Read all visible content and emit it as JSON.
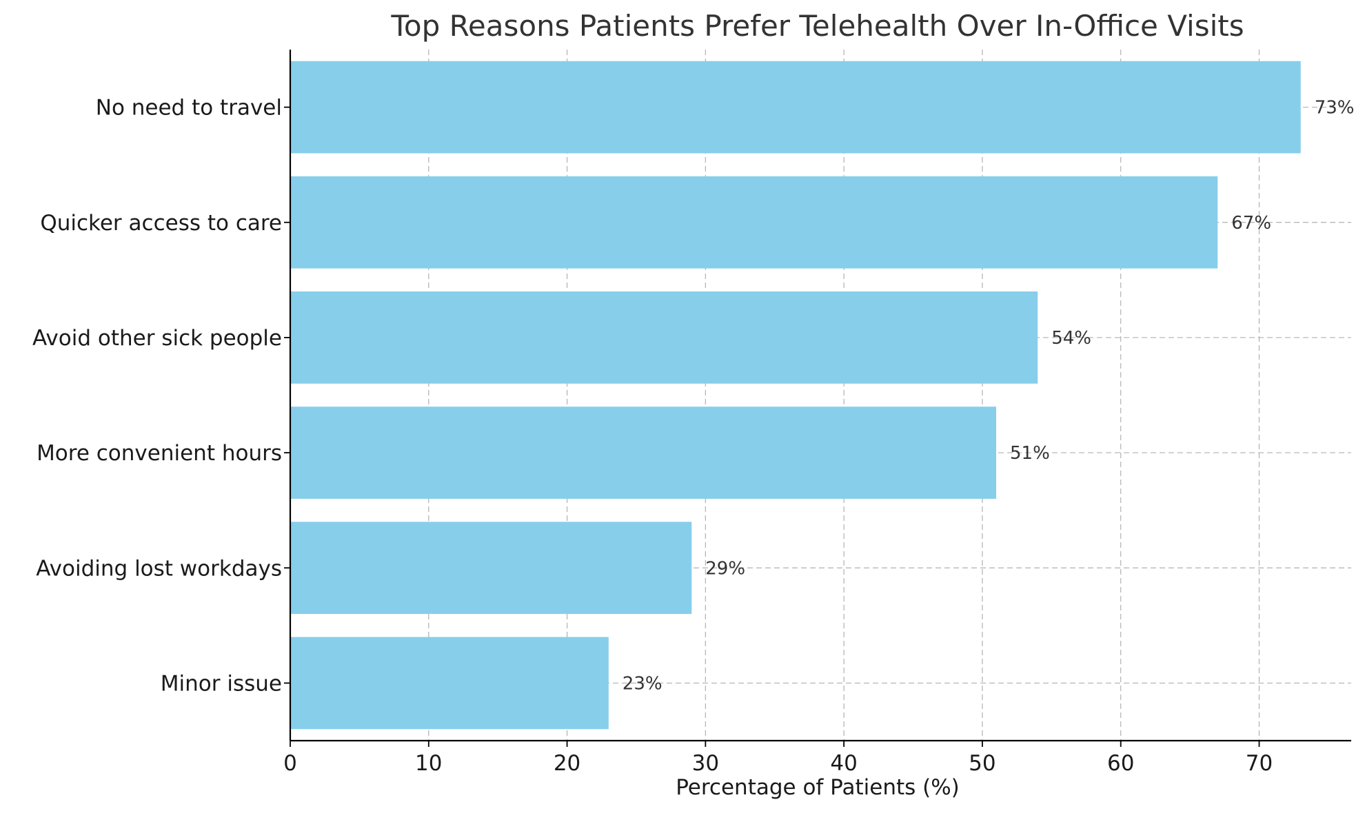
{
  "chart_data": {
    "type": "bar",
    "orientation": "horizontal",
    "title": "Top Reasons Patients Prefer Telehealth Over In-Office Visits",
    "xlabel": "Percentage of Patients (%)",
    "ylabel": "",
    "categories": [
      "No need to travel",
      "Quicker access to care",
      "Avoid other sick people",
      "More convenient hours",
      "Avoiding lost workdays",
      "Minor issue"
    ],
    "values": [
      73,
      67,
      54,
      51,
      29,
      23
    ],
    "value_labels": [
      "73%",
      "67%",
      "54%",
      "51%",
      "29%",
      "23%"
    ],
    "xlim": [
      0,
      76.65
    ],
    "xticks": [
      0,
      10,
      20,
      30,
      40,
      50,
      60,
      70
    ],
    "grid": true,
    "bar_color": "#87ceeb"
  }
}
